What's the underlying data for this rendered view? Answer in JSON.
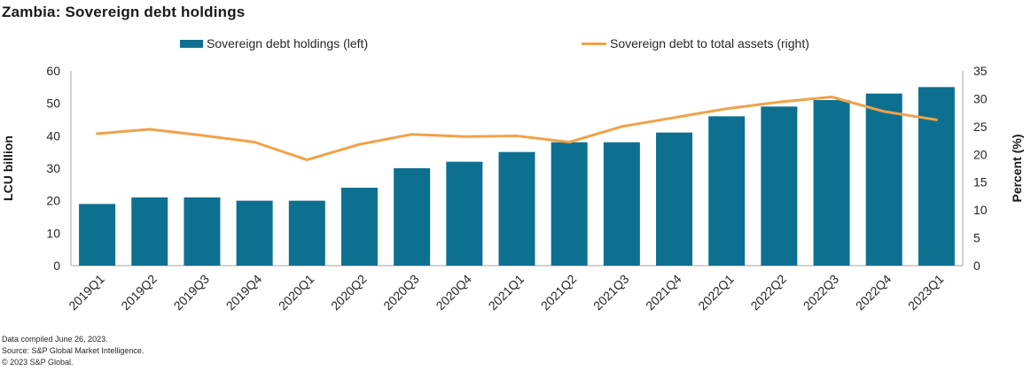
{
  "title": "Zambia: Sovereign debt holdings",
  "legend": [
    {
      "label": "Sovereign debt holdings (left)"
    },
    {
      "label": "Sovereign debt to total assets (right)"
    }
  ],
  "footer": {
    "line1": "Data compiled June 26, 2023.",
    "line2": "Source: S&P Global Market Intelligence.",
    "line3": "© 2023 S&P Global."
  },
  "colors": {
    "bar": "#0E7090",
    "line": "#F0A24A",
    "axis": "#A6A6A6",
    "text": "#262626"
  },
  "chart_data": {
    "type": "bar",
    "subtype": "bar-and-line-dual-axis",
    "title": "Zambia: Sovereign debt holdings",
    "categories": [
      "2019Q1",
      "2019Q2",
      "2019Q3",
      "2019Q4",
      "2020Q1",
      "2020Q2",
      "2020Q3",
      "2020Q4",
      "2021Q1",
      "2021Q2",
      "2021Q3",
      "2021Q4",
      "2022Q1",
      "2022Q2",
      "2022Q3",
      "2022Q4",
      "2023Q1"
    ],
    "series": [
      {
        "name": "Sovereign debt holdings (left)",
        "type": "bar",
        "axis": "left",
        "color": "#0E7090",
        "values": [
          19,
          21,
          21,
          20,
          20,
          24,
          30,
          32,
          35,
          38,
          38,
          41,
          46,
          49,
          51,
          53,
          55
        ]
      },
      {
        "name": "Sovereign debt to total assets (right)",
        "type": "line",
        "axis": "right",
        "color": "#F0A24A",
        "values": [
          23.7,
          24.5,
          23.4,
          22.2,
          19.0,
          21.8,
          23.6,
          23.2,
          23.3,
          22.2,
          25.0,
          26.6,
          28.2,
          29.4,
          30.3,
          27.7,
          26.2
        ]
      }
    ],
    "left_axis": {
      "label": "LCU billion",
      "min": 0,
      "max": 60,
      "step": 10
    },
    "right_axis": {
      "label": "Percent (%)",
      "min": 0,
      "max": 35,
      "step": 5
    },
    "grid": false,
    "legend_position": "top",
    "x_tick_rotation": -45
  }
}
